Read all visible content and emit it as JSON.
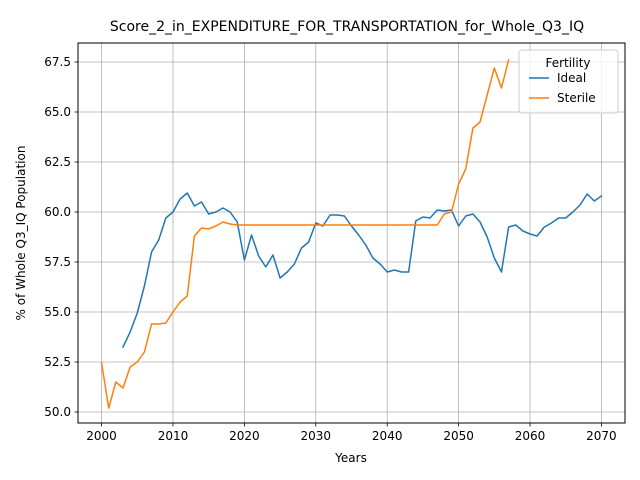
{
  "chart_data": {
    "type": "line",
    "title": "Score_2_in_EXPENDITURE_FOR_TRANSPORTATION_for_Whole_Q3_IQ",
    "xlabel": "Years",
    "ylabel": "% of Whole Q3_IQ Population",
    "xlim": [
      1996.7,
      2073.3
    ],
    "ylim": [
      49.45,
      68.45
    ],
    "xticks": [
      2000,
      2010,
      2020,
      2030,
      2040,
      2050,
      2060,
      2070
    ],
    "yticks": [
      50.0,
      52.5,
      55.0,
      57.5,
      60.0,
      62.5,
      65.0,
      67.5
    ],
    "xtick_labels": [
      "2000",
      "2010",
      "2020",
      "2030",
      "2040",
      "2050",
      "2060",
      "2070"
    ],
    "ytick_labels": [
      "50.0",
      "52.5",
      "55.0",
      "57.5",
      "60.0",
      "62.5",
      "65.0",
      "67.5"
    ],
    "grid": true,
    "legend": {
      "title": "Fertility",
      "placement": "upper-right"
    },
    "series": [
      {
        "name": "Ideal",
        "color": "#1f77b4",
        "x": [
          2003,
          2004,
          2005,
          2006,
          2007,
          2008,
          2009,
          2010,
          2011,
          2012,
          2013,
          2014,
          2015,
          2016,
          2017,
          2018,
          2019,
          2020,
          2021,
          2022,
          2023,
          2024,
          2025,
          2026,
          2027,
          2028,
          2029,
          2030,
          2031,
          2032,
          2033,
          2034,
          2035,
          2036,
          2037,
          2038,
          2039,
          2040,
          2041,
          2042,
          2043,
          2044,
          2045,
          2046,
          2047,
          2048,
          2049,
          2050,
          2051,
          2052,
          2053,
          2054,
          2055,
          2056,
          2057,
          2058,
          2059,
          2060,
          2061,
          2062,
          2063,
          2064,
          2065,
          2066,
          2067,
          2068,
          2069,
          2070
        ],
        "y": [
          53.25,
          54.0,
          54.95,
          56.3,
          58.0,
          58.6,
          59.7,
          60.0,
          60.65,
          60.95,
          60.3,
          60.5,
          59.9,
          60.0,
          60.2,
          60.0,
          59.5,
          57.6,
          58.85,
          57.8,
          57.25,
          57.85,
          56.7,
          57.0,
          57.4,
          58.2,
          58.5,
          59.45,
          59.3,
          59.85,
          59.85,
          59.8,
          59.3,
          58.85,
          58.35,
          57.7,
          57.4,
          57.0,
          57.1,
          57.0,
          57.0,
          59.55,
          59.75,
          59.7,
          60.1,
          60.05,
          60.1,
          59.3,
          59.8,
          59.9,
          59.5,
          58.75,
          57.7,
          57.0,
          59.25,
          59.35,
          59.05,
          58.9,
          58.8,
          59.25,
          59.45,
          59.7,
          59.7,
          60.0,
          60.35,
          60.9,
          60.55,
          60.8
        ]
      },
      {
        "name": "Sterile",
        "color": "#ff7f0e",
        "x": [
          2000,
          2001,
          2002,
          2003,
          2004,
          2005,
          2006,
          2007,
          2008,
          2009,
          2010,
          2011,
          2012,
          2013,
          2014,
          2015,
          2016,
          2017,
          2018,
          2019,
          2020,
          2021,
          2022,
          2023,
          2024,
          2025,
          2026,
          2027,
          2028,
          2029,
          2030,
          2031,
          2032,
          2033,
          2034,
          2035,
          2036,
          2037,
          2038,
          2039,
          2040,
          2041,
          2042,
          2043,
          2044,
          2045,
          2046,
          2047,
          2048,
          2049,
          2050,
          2051,
          2052,
          2053,
          2054,
          2055,
          2056,
          2057
        ],
        "y": [
          52.45,
          50.2,
          51.5,
          51.2,
          52.25,
          52.5,
          53.0,
          54.4,
          54.4,
          54.45,
          55.0,
          55.5,
          55.8,
          58.8,
          59.2,
          59.15,
          59.3,
          59.5,
          59.4,
          59.35,
          59.35,
          59.35,
          59.35,
          59.35,
          59.35,
          59.35,
          59.35,
          59.35,
          59.35,
          59.35,
          59.35,
          59.35,
          59.35,
          59.35,
          59.35,
          59.35,
          59.35,
          59.35,
          59.35,
          59.35,
          59.35,
          59.35,
          59.35,
          59.35,
          59.35,
          59.35,
          59.35,
          59.35,
          59.9,
          60.0,
          61.4,
          62.15,
          64.2,
          64.5,
          65.85,
          67.2,
          66.2,
          67.6
        ]
      }
    ]
  }
}
